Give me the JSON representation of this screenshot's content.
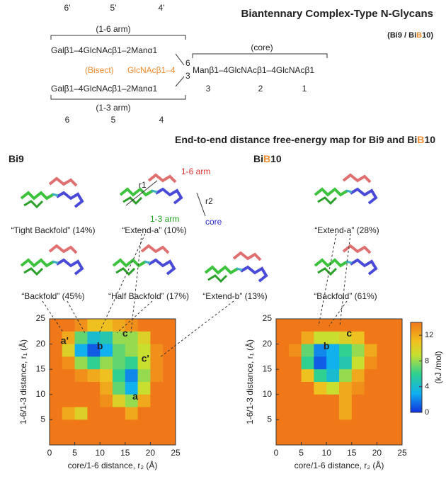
{
  "schematic": {
    "title": "Biantennary Complex-Type N-Glycans",
    "subtitle": [
      "(",
      "Bi9",
      " / Bi",
      "B",
      "10",
      ")"
    ],
    "top_numbers": [
      "6'",
      "5'",
      "4'"
    ],
    "arm16": "(1-6 arm)",
    "arm13": "(1-3 arm)",
    "core": "(core)",
    "branch16": "Galβ1–4GlcNAcβ1–2Manα1",
    "bisect": "(Bisect)",
    "bisect_residue": "GlcNAcβ1–4",
    "link6": "6",
    "link3": "3",
    "core_chain": "Manβ1–4GlcNAcβ1–4GlcNAcβ1",
    "core_numbers": [
      "3",
      "2",
      "1"
    ],
    "branch13": "Galβ1–4GlcNAcβ1–2Manα1",
    "bottom_numbers": [
      "6",
      "5",
      "4"
    ]
  },
  "heading": [
    "End-to-end distance free-energy map for Bi9 and Bi",
    "B",
    "10"
  ],
  "conformers": {
    "bi9": [
      "“Tight Backfold” (14%)",
      "“Extend-a” (10%)",
      "“Backfold” (45%)",
      "“Half Backfold” (17%)",
      "“Extend-b” (13%)"
    ],
    "bib10": [
      "“Extend-a” (28%)",
      "“Backfold” (61%)"
    ],
    "labels": {
      "r1": "r1",
      "r2": "r2",
      "arm16": "1-6 arm",
      "arm13": "1-3 arm",
      "core": "core"
    }
  },
  "chart_data": [
    {
      "type": "heatmap",
      "title": [
        "Bi9"
      ],
      "xlabel": "core/1-6 distance, r₂ (Å)",
      "ylabel": "1-6/1-3 distance, r₁ (Å)",
      "xlim": [
        0,
        25
      ],
      "ylim": [
        0,
        25
      ],
      "xticks": [
        0,
        5,
        10,
        15,
        20,
        25
      ],
      "yticks": [
        5,
        10,
        15,
        20,
        25
      ],
      "z": [
        [
          14,
          14,
          13,
          11,
          11,
          12,
          13,
          14,
          14,
          14
        ],
        [
          14,
          12,
          7,
          4,
          5,
          8,
          8,
          10,
          14,
          14
        ],
        [
          14,
          10,
          3,
          1,
          3,
          7,
          8,
          9,
          13,
          14
        ],
        [
          14,
          13,
          8,
          6,
          8,
          7,
          6,
          9,
          13,
          14
        ],
        [
          14,
          14,
          13,
          12,
          11,
          6,
          2,
          8,
          13,
          14
        ],
        [
          14,
          14,
          14,
          14,
          12,
          7,
          3,
          9,
          14,
          14
        ],
        [
          14,
          14,
          14,
          14,
          13,
          10,
          8,
          12,
          14,
          14
        ],
        [
          14,
          12,
          10,
          14,
          14,
          14,
          12,
          14,
          14,
          14
        ],
        [
          14,
          14,
          14,
          14,
          14,
          14,
          14,
          14,
          14,
          14
        ],
        [
          14,
          14,
          14,
          14,
          14,
          14,
          14,
          14,
          14,
          14
        ]
      ],
      "annotations": [
        {
          "text": "a'",
          "x": 3,
          "y": 20.5
        },
        {
          "text": "b",
          "x": 10,
          "y": 19.5
        },
        {
          "text": "c",
          "x": 15,
          "y": 22
        },
        {
          "text": "c'",
          "x": 19,
          "y": 17
        },
        {
          "text": "a",
          "x": 17,
          "y": 9.5
        }
      ]
    },
    {
      "type": "heatmap",
      "title": [
        "Bi",
        "B",
        "10"
      ],
      "xlabel": "core/1-6 distance, r₂ (Å)",
      "ylabel": "1-6/1-3 distance, r₁ (Å)",
      "xlim": [
        0,
        25
      ],
      "ylim": [
        0,
        25
      ],
      "xticks": [
        0,
        5,
        10,
        15,
        20,
        25
      ],
      "yticks": [
        5,
        10,
        15,
        20,
        25
      ],
      "z": [
        [
          14,
          14,
          14,
          14,
          14,
          14,
          14,
          14,
          14,
          14
        ],
        [
          14,
          14,
          12,
          9,
          9,
          10,
          11,
          14,
          14,
          14
        ],
        [
          14,
          13,
          7,
          2,
          3,
          6,
          8,
          12,
          14,
          14
        ],
        [
          14,
          14,
          6,
          1,
          3,
          5,
          9,
          13,
          14,
          14
        ],
        [
          14,
          14,
          11,
          6,
          4,
          8,
          12,
          14,
          14,
          14
        ],
        [
          14,
          14,
          14,
          11,
          9,
          12,
          13,
          14,
          14,
          14
        ],
        [
          14,
          14,
          14,
          14,
          14,
          12,
          14,
          14,
          14,
          14
        ],
        [
          14,
          14,
          14,
          14,
          14,
          12,
          14,
          14,
          14,
          14
        ],
        [
          14,
          14,
          14,
          14,
          14,
          14,
          14,
          14,
          14,
          14
        ],
        [
          14,
          14,
          14,
          14,
          14,
          14,
          14,
          14,
          14,
          14
        ]
      ],
      "annotations": [
        {
          "text": "b",
          "x": 10,
          "y": 19.5
        },
        {
          "text": "c",
          "x": 14.5,
          "y": 22
        }
      ],
      "colorbar": {
        "label": "(kJ /mol)",
        "lim": [
          0,
          14
        ],
        "ticks": [
          0,
          4,
          8,
          12
        ]
      }
    }
  ]
}
